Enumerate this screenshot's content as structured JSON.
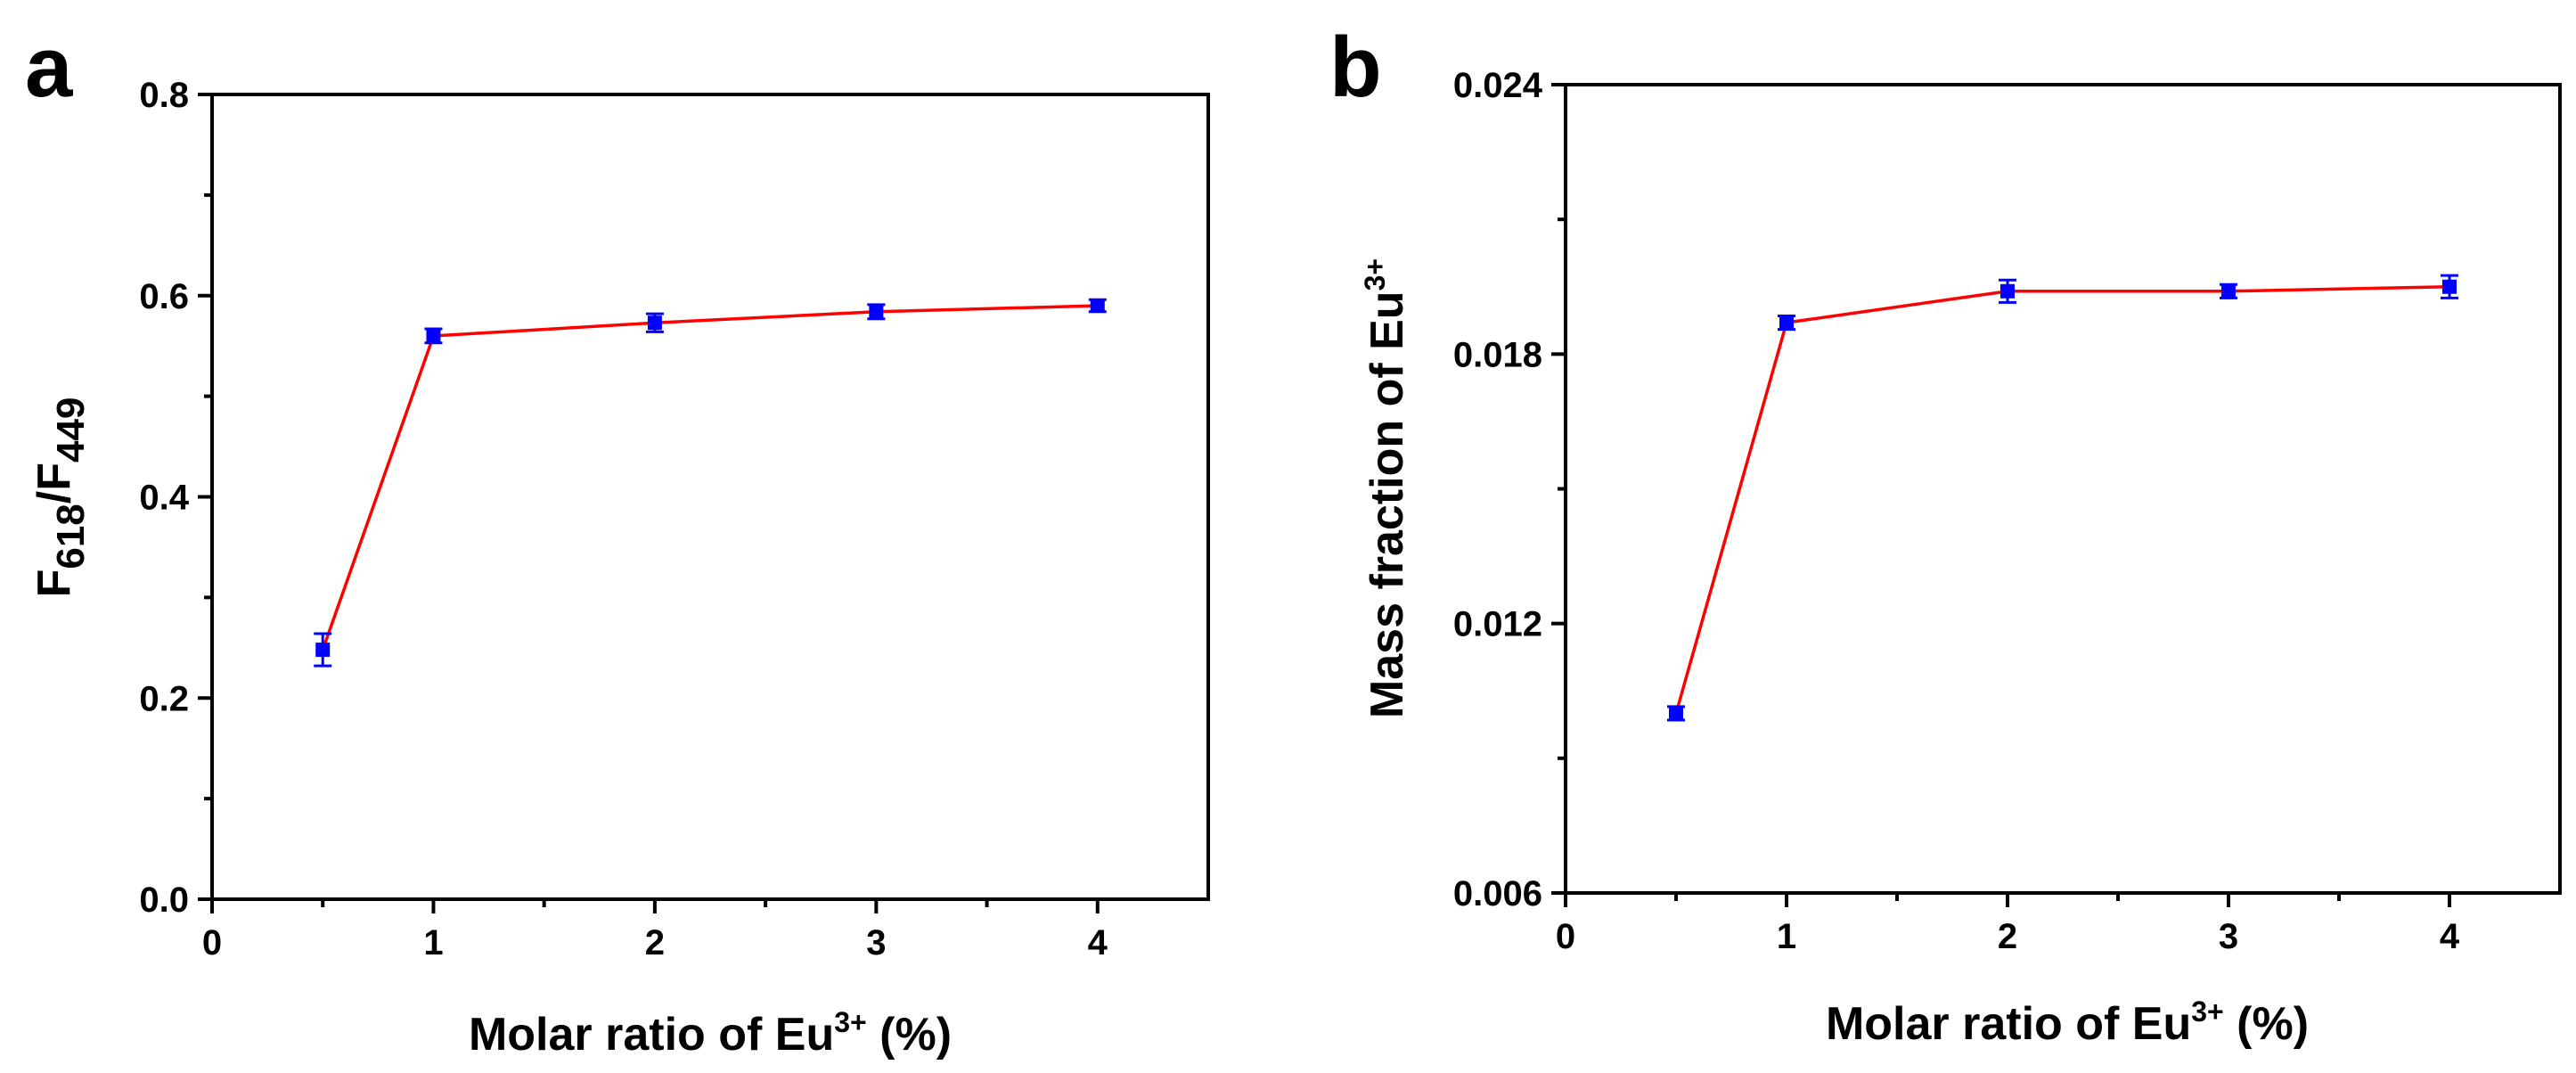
{
  "chart_data": [
    {
      "type": "line",
      "panel": "a",
      "title": "",
      "x": [
        0.5,
        1,
        2,
        3,
        4
      ],
      "series": [
        {
          "name": "F618/F449",
          "values": [
            0.248,
            0.56,
            0.573,
            0.584,
            0.59
          ],
          "errors": [
            0.016,
            0.007,
            0.009,
            0.007,
            0.006
          ],
          "line_color": "#ff0000",
          "marker_color": "#0000ff"
        }
      ],
      "xlim": [
        0,
        4.5
      ],
      "ylim": [
        0,
        0.8
      ],
      "x_ticks": [
        "0",
        "1",
        "2",
        "3",
        "4"
      ],
      "y_ticks": [
        "0.0",
        "0.2",
        "0.4",
        "0.6",
        "0.8"
      ],
      "xlabel": {
        "main": "Molar ratio of Eu",
        "sup": "3+",
        "tail": " (%)"
      },
      "ylabel": {
        "p1": "F",
        "sub1": "618",
        "p2": "/F",
        "sub2": "449"
      },
      "grid": false,
      "legend": "none"
    },
    {
      "type": "line",
      "panel": "b",
      "title": "",
      "x": [
        0.5,
        1,
        2,
        3,
        4
      ],
      "series": [
        {
          "name": "Mass fraction of Eu3+",
          "values": [
            0.01,
            0.0187,
            0.0194,
            0.0194,
            0.0195
          ],
          "errors": [
            0.00015,
            0.00015,
            0.00025,
            0.00015,
            0.00025
          ],
          "line_color": "#ff0000",
          "marker_color": "#0000ff"
        }
      ],
      "xlim": [
        0,
        4.5
      ],
      "ylim": [
        0.006,
        0.024
      ],
      "x_ticks": [
        "0",
        "1",
        "2",
        "3",
        "4"
      ],
      "y_ticks": [
        "0.006",
        "0.012",
        "0.018",
        "0.024"
      ],
      "xlabel": {
        "main": "Molar ratio of Eu",
        "sup": "3+",
        "tail": " (%)"
      },
      "ylabel": {
        "main": "Mass fraction of Eu",
        "sup": "3+"
      },
      "grid": false,
      "legend": "none"
    }
  ]
}
